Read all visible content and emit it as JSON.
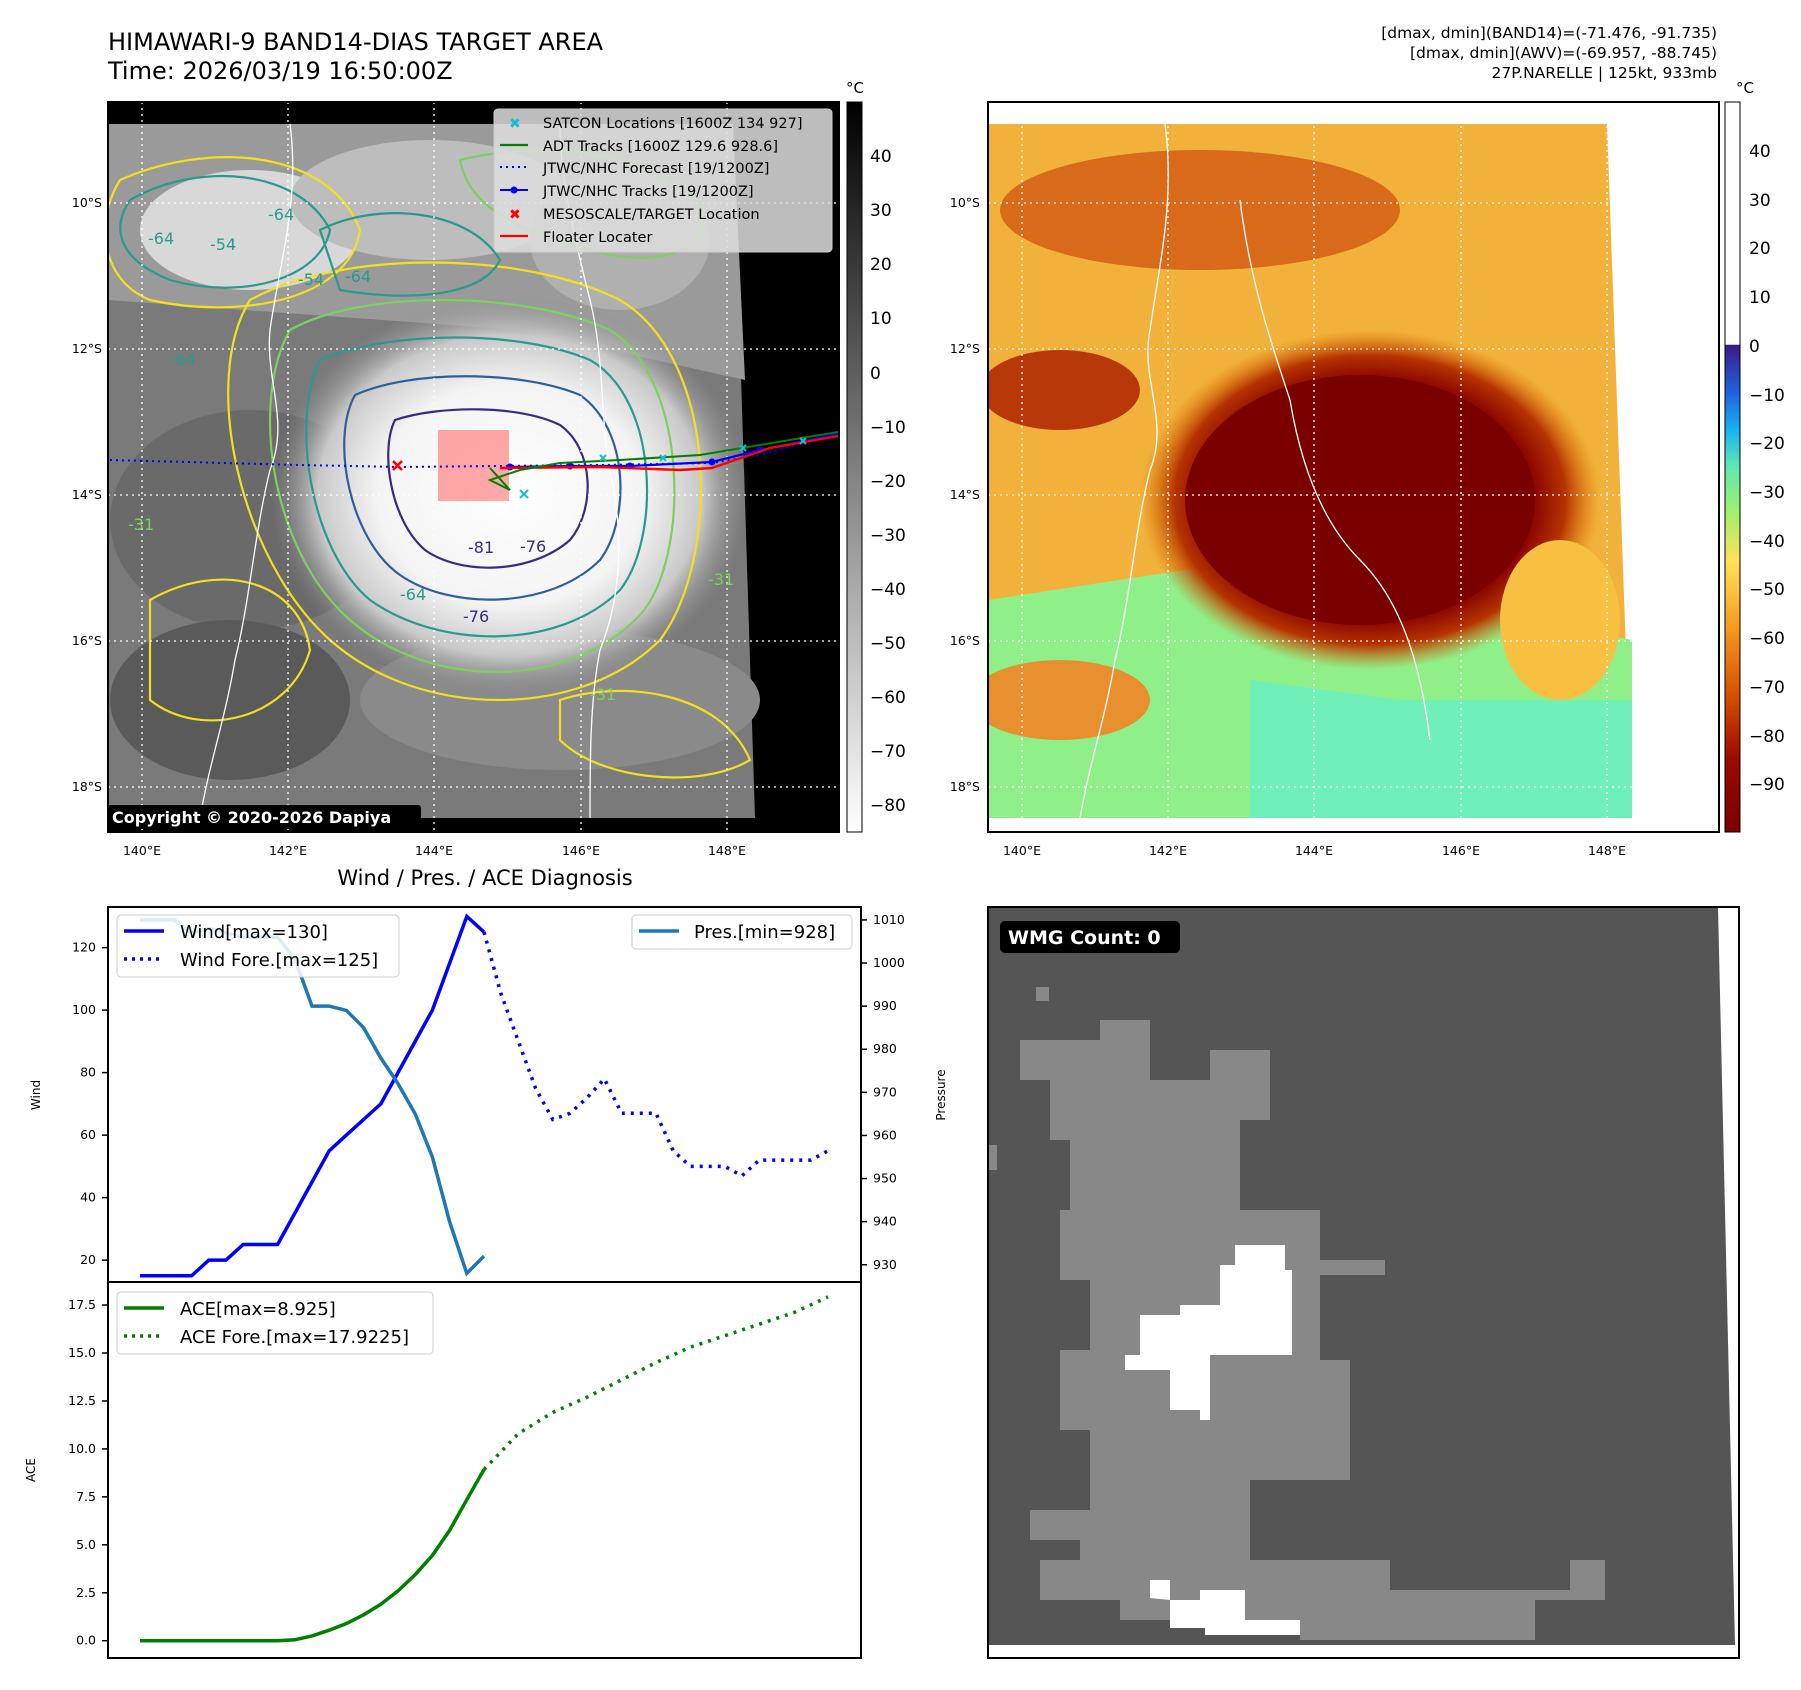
{
  "header": {
    "title_line1": "HIMAWARI-9 BAND14-DIAS TARGET AREA",
    "title_line2": "Time: 2026/03/19 16:50:00Z",
    "right_line1": "[dmax, dmin](BAND14)=(-71.476, -91.735)",
    "right_line2": "[dmax, dmin](AWV)=(-69.957, -88.745)",
    "right_line3": "27P.NARELLE | 125kt, 933mb"
  },
  "map_common": {
    "lon_ticks": [
      "140°E",
      "142°E",
      "144°E",
      "146°E",
      "148°E"
    ],
    "lat_ticks": [
      "10°S",
      "12°S",
      "14°S",
      "16°S",
      "18°S"
    ]
  },
  "ir_panel": {
    "colorbar_unit": "°C",
    "colorbar_ticks": [
      "40",
      "30",
      "20",
      "10",
      "0",
      "−10",
      "−20",
      "−30",
      "−40",
      "−50",
      "−60",
      "−70",
      "−80"
    ],
    "copyright": "Copyright © 2020-2026 Dapiya",
    "contour_labels": [
      "-64",
      "-64",
      "-54",
      "-64",
      "-64",
      "-76",
      "-64",
      "-31",
      "-31",
      "-31",
      "-54",
      "-76",
      "-81"
    ],
    "legend": [
      {
        "label": "SATCON Locations [1600Z 134 927]",
        "color": "#17becf"
      },
      {
        "label": "ADT Tracks [1600Z 129.6 928.6]",
        "color": "#008000"
      },
      {
        "label": "JTWC/NHC Forecast [19/1200Z]",
        "color": "#0000ff"
      },
      {
        "label": "JTWC/NHC Tracks [19/1200Z]",
        "color": "#0000ff"
      },
      {
        "label": "MESOSCALE/TARGET Location",
        "color": "#ff0000"
      },
      {
        "label": "Floater Locater",
        "color": "#ff0000"
      }
    ]
  },
  "wv_panel": {
    "colorbar_unit": "°C",
    "colorbar_ticks": [
      "40",
      "30",
      "20",
      "10",
      "0",
      "−10",
      "−20",
      "−30",
      "−40",
      "−50",
      "−60",
      "−70",
      "−80",
      "−90"
    ]
  },
  "wmg_panel": {
    "badge": "WMG Count: 0"
  },
  "chart_data": [
    {
      "type": "line",
      "title": "Wind / Pres. / ACE Diagnosis",
      "ylabel": "Wind",
      "ylabel_right": "Pressure",
      "ylim": [
        13,
        133
      ],
      "ylim_right": [
        926,
        1013
      ],
      "yticks": [
        "20",
        "40",
        "60",
        "80",
        "100",
        "120"
      ],
      "yticks_right": [
        "930",
        "940",
        "950",
        "960",
        "970",
        "980",
        "990",
        "1000",
        "1010"
      ],
      "series": [
        {
          "name": "Wind[max=130]",
          "axis": "left",
          "style": "solid",
          "color": "#0000ff",
          "x": [
            0,
            1,
            2,
            3,
            4,
            5,
            6,
            7,
            8,
            9,
            10,
            11,
            12,
            13,
            14,
            15,
            16,
            17,
            18,
            19,
            20
          ],
          "y": [
            15,
            15,
            15,
            15,
            20,
            20,
            25,
            25,
            25,
            35,
            45,
            55,
            60,
            65,
            70,
            80,
            90,
            100,
            115,
            130,
            125
          ]
        },
        {
          "name": "Wind Fore.[max=125]",
          "axis": "left",
          "style": "dotted",
          "color": "#0000ff",
          "x": [
            20,
            21,
            22,
            23,
            24,
            25,
            26,
            27,
            28,
            29,
            30,
            31,
            32,
            33,
            34,
            35,
            36,
            37,
            38,
            39,
            40
          ],
          "y": [
            125,
            105,
            90,
            75,
            65,
            67,
            72,
            78,
            67,
            67,
            67,
            55,
            50,
            50,
            50,
            47,
            52,
            52,
            52,
            52,
            55
          ]
        },
        {
          "name": "Pres.[min=928]",
          "axis": "right",
          "style": "solid",
          "color": "#1f77b4",
          "x": [
            0,
            1,
            2,
            3,
            4,
            5,
            6,
            7,
            8,
            9,
            10,
            11,
            12,
            13,
            14,
            15,
            16,
            17,
            18,
            19,
            20
          ],
          "y": [
            1010,
            1010,
            1010,
            1007,
            1008,
            1007,
            1006,
            1006,
            1006,
            1001,
            990,
            990,
            989,
            985,
            978,
            972,
            965,
            955,
            940,
            928,
            932
          ]
        }
      ]
    },
    {
      "type": "line",
      "ylabel": "ACE",
      "ylim": [
        -0.9,
        18.7
      ],
      "yticks": [
        "0.0",
        "2.5",
        "5.0",
        "7.5",
        "10.0",
        "12.5",
        "15.0",
        "17.5"
      ],
      "series": [
        {
          "name": "ACE[max=8.925]",
          "style": "solid",
          "color": "#008000",
          "x": [
            0,
            1,
            2,
            3,
            4,
            5,
            6,
            7,
            8,
            9,
            10,
            11,
            12,
            13,
            14,
            15,
            16,
            17,
            18,
            19,
            20
          ],
          "y": [
            0,
            0,
            0,
            0,
            0,
            0,
            0,
            0,
            0,
            0.05,
            0.25,
            0.55,
            0.9,
            1.35,
            1.9,
            2.6,
            3.45,
            4.45,
            5.75,
            7.35,
            8.925
          ]
        },
        {
          "name": "ACE Fore.[max=17.9225]",
          "style": "dotted",
          "color": "#008000",
          "x": [
            20,
            22,
            24,
            26,
            28,
            30,
            32,
            34,
            36,
            38,
            40
          ],
          "y": [
            8.925,
            10.8,
            11.9,
            12.7,
            13.6,
            14.5,
            15.3,
            15.9,
            16.5,
            17.1,
            17.9225
          ]
        }
      ]
    }
  ]
}
